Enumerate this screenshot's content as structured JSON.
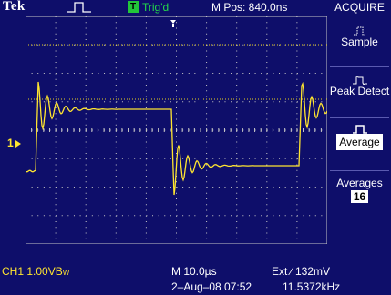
{
  "header": {
    "brand": "Tek",
    "run_icon": "run-square-wave-icon",
    "trig_badge": "T",
    "trig_status": "Trig'd",
    "position": "M Pos: 840.0ns"
  },
  "menu": {
    "title": "ACQUIRE",
    "items": [
      {
        "label": "Sample",
        "icon": "sample-mode-icon",
        "selected": false
      },
      {
        "label": "Peak Detect",
        "icon": "peak-detect-icon",
        "selected": false
      },
      {
        "label": "Average",
        "icon": "average-mode-icon",
        "selected": true
      },
      {
        "label": "Averages",
        "value": "16"
      }
    ]
  },
  "waveform": {
    "channel_marker": "1",
    "trace_color": "#ffe530",
    "grid_color": "#c8c8c8",
    "trigger_level_color": "#e8d020"
  },
  "footer": {
    "ch1_scale": "CH1  1.00V",
    "ch1_bw": "B",
    "ch1_bw_sub": "W",
    "timebase": "M 10.0µs",
    "trigger": "Ext ∕ 132mV",
    "datetime": "2–Aug–08 07:52",
    "frequency": "11.5372kHz"
  },
  "colors": {
    "background": "#0e0e6a",
    "trig_green": "#22c53a",
    "channel_yellow": "#ffe530"
  }
}
